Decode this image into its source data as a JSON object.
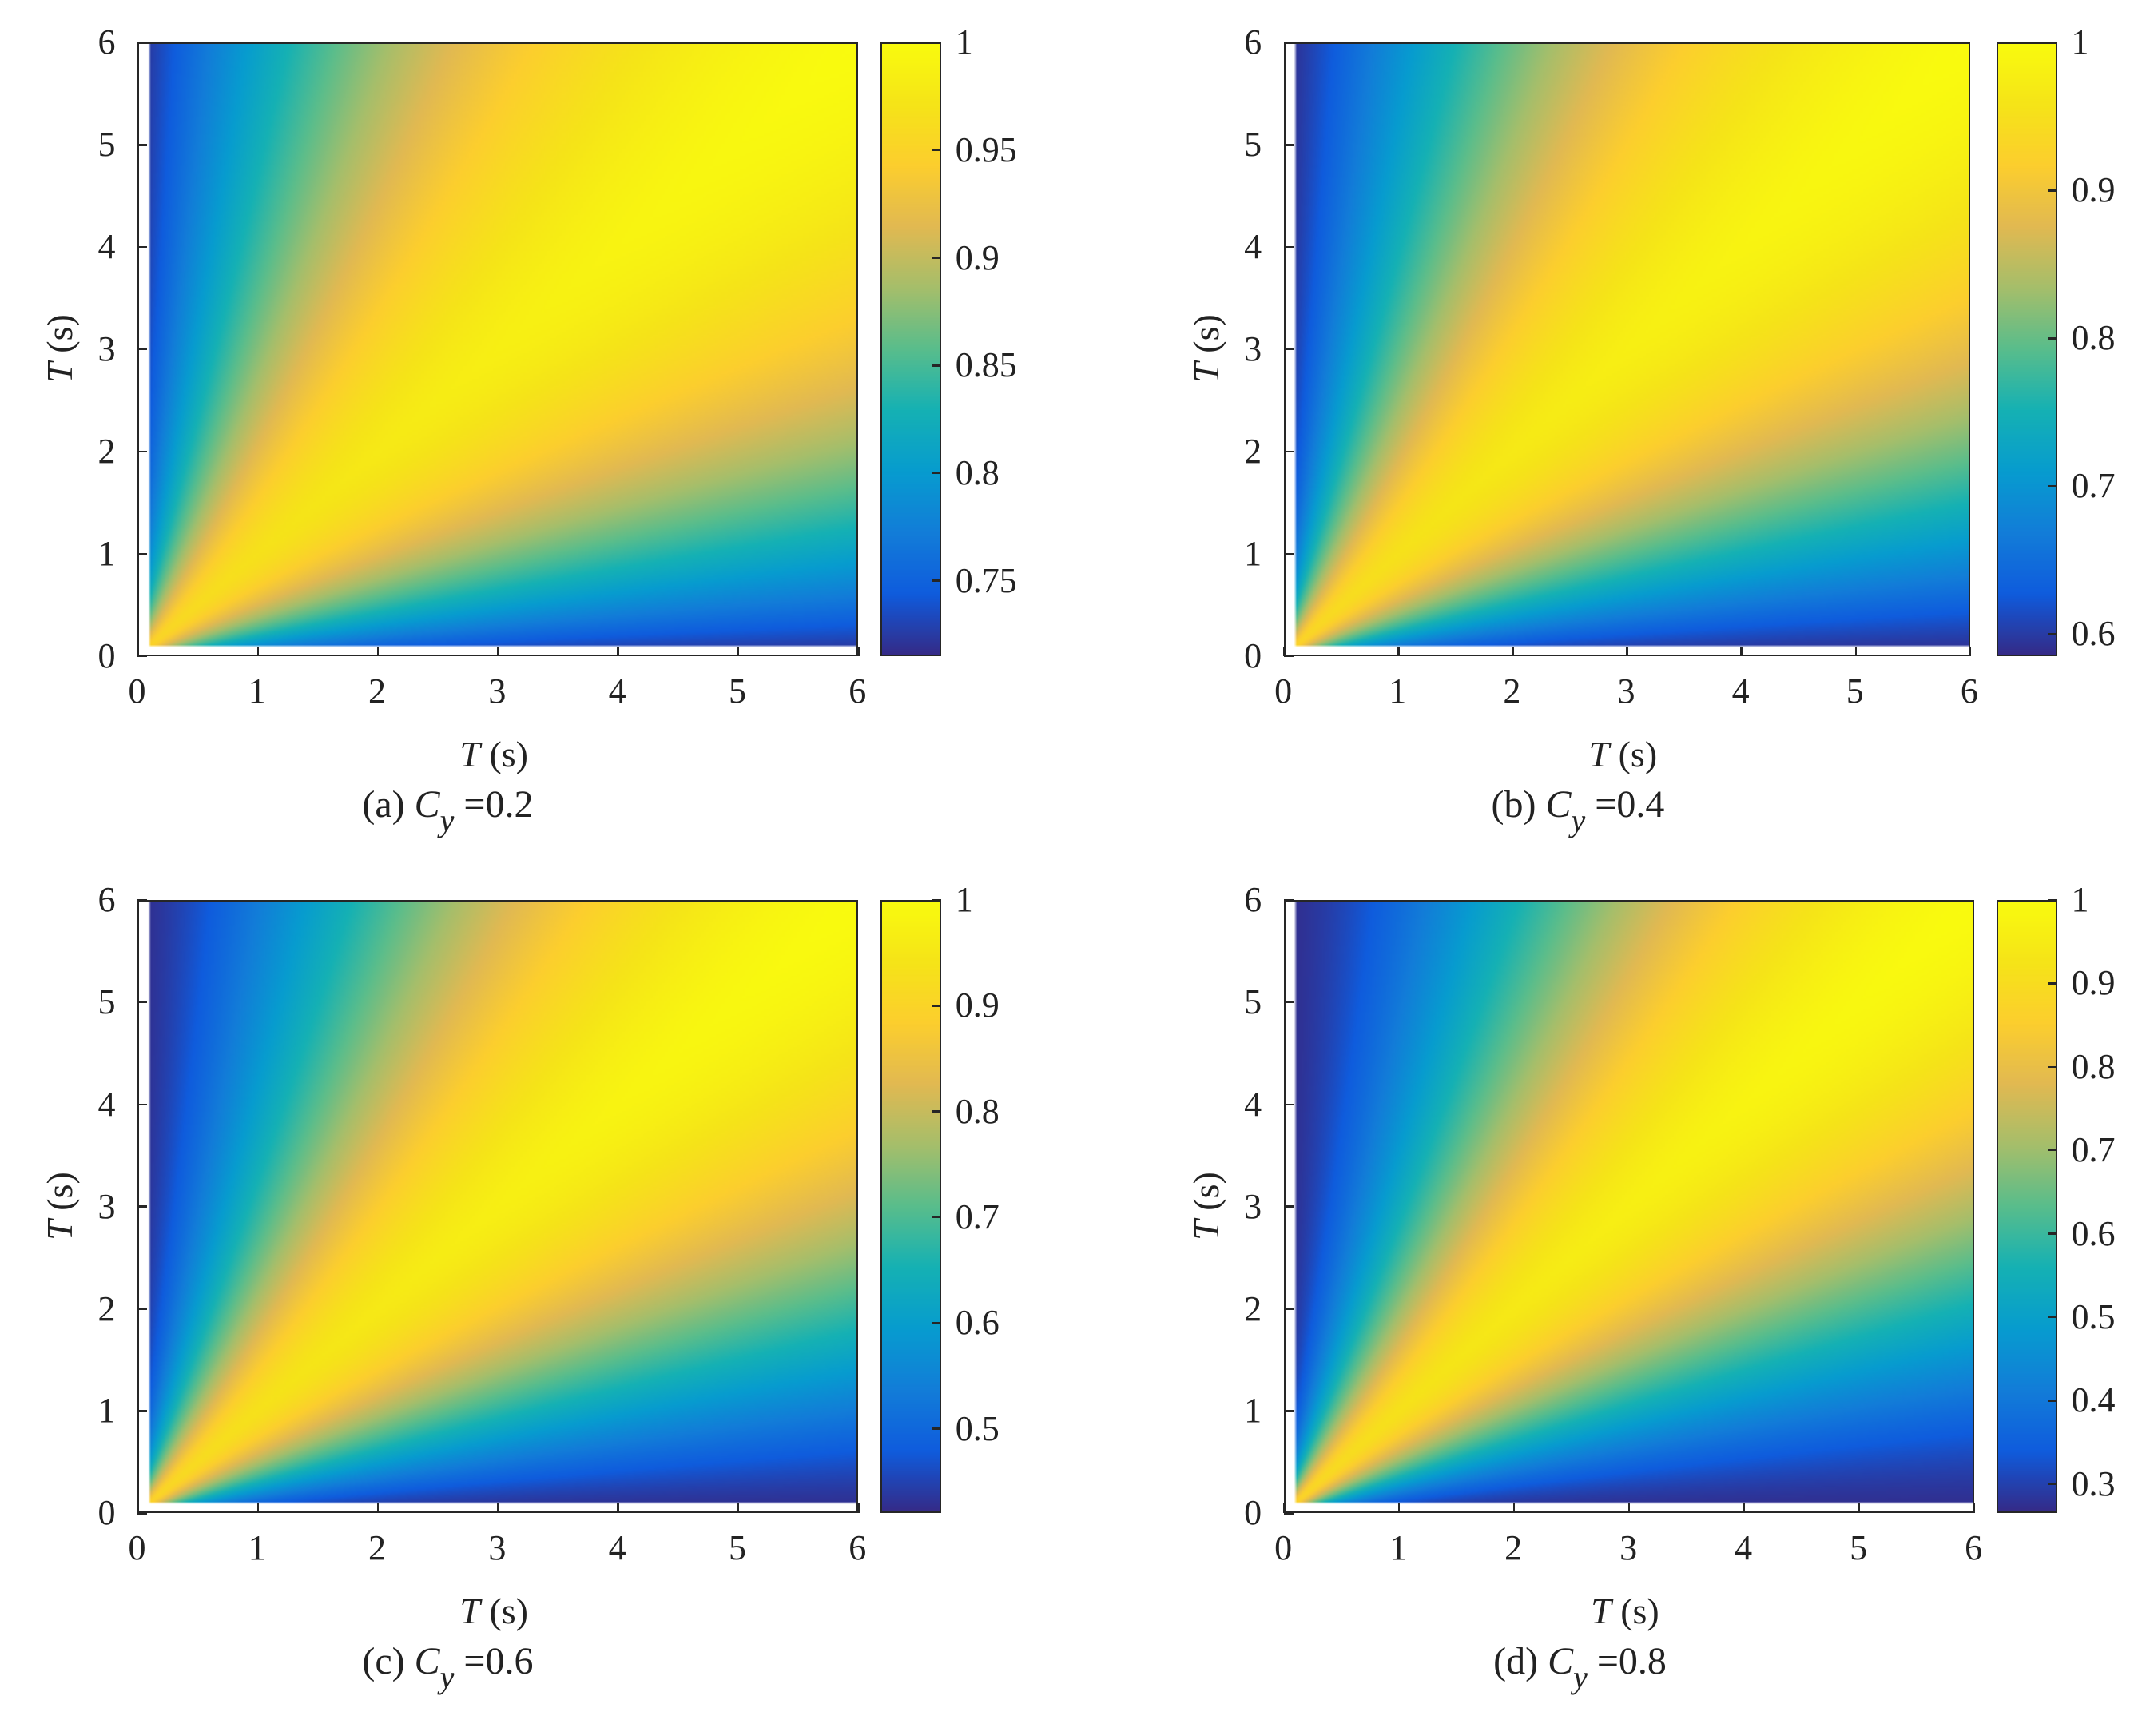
{
  "axis_label_var": "T",
  "axis_label_unit": " (s)",
  "caption_var": "C",
  "caption_sub": "y",
  "chart_data": [
    {
      "type": "heatmap",
      "caption_prefix": "(a) ",
      "caption_value": " =0.2",
      "xlabel": "T (s)",
      "ylabel": "T (s)",
      "xlim": [
        0,
        6
      ],
      "ylim": [
        0,
        6
      ],
      "xticks": [
        "0",
        "1",
        "2",
        "3",
        "4",
        "5",
        "6"
      ],
      "yticks": [
        "0",
        "1",
        "2",
        "3",
        "4",
        "5",
        "6"
      ],
      "colormap": "parula",
      "clim": [
        0.715,
        1.0
      ],
      "colorbar_ticks": [
        "0.75",
        "0.8",
        "0.85",
        "0.9",
        "0.95",
        "1"
      ],
      "colorbar_tick_values": [
        0.75,
        0.8,
        0.85,
        0.9,
        0.95,
        1.0
      ],
      "description_values": {
        "diagonal": 1.0,
        "upper_left_min": 0.72,
        "lower_right_min": 0.72
      }
    },
    {
      "type": "heatmap",
      "caption_prefix": "(b) ",
      "caption_value": " =0.4",
      "xlabel": "T (s)",
      "ylabel": "T (s)",
      "xlim": [
        0,
        6
      ],
      "ylim": [
        0,
        6
      ],
      "xticks": [
        "0",
        "1",
        "2",
        "3",
        "4",
        "5",
        "6"
      ],
      "yticks": [
        "0",
        "1",
        "2",
        "3",
        "4",
        "5",
        "6"
      ],
      "colormap": "parula",
      "clim": [
        0.585,
        1.0
      ],
      "colorbar_ticks": [
        "0.6",
        "0.7",
        "0.8",
        "0.9",
        "1"
      ],
      "colorbar_tick_values": [
        0.6,
        0.7,
        0.8,
        0.9,
        1.0
      ],
      "description_values": {
        "diagonal": 1.0,
        "upper_left_min": 0.6,
        "lower_right_min": 0.6
      }
    },
    {
      "type": "heatmap",
      "caption_prefix": "(c) ",
      "caption_value": " =0.6",
      "xlabel": "T (s)",
      "ylabel": "T (s)",
      "xlim": [
        0,
        6
      ],
      "ylim": [
        0,
        6
      ],
      "xticks": [
        "0",
        "1",
        "2",
        "3",
        "4",
        "5",
        "6"
      ],
      "yticks": [
        "0",
        "1",
        "2",
        "3",
        "4",
        "5",
        "6"
      ],
      "colormap": "parula",
      "clim": [
        0.42,
        1.0
      ],
      "colorbar_ticks": [
        "0.5",
        "0.6",
        "0.7",
        "0.8",
        "0.9",
        "1"
      ],
      "colorbar_tick_values": [
        0.5,
        0.6,
        0.7,
        0.8,
        0.9,
        1.0
      ],
      "description_values": {
        "diagonal": 1.0,
        "upper_left_min": 0.44,
        "lower_right_min": 0.44
      }
    },
    {
      "type": "heatmap",
      "caption_prefix": "(d) ",
      "caption_value": " =0.8",
      "xlabel": "T (s)",
      "ylabel": "T (s)",
      "xlim": [
        0,
        6
      ],
      "ylim": [
        0,
        6
      ],
      "xticks": [
        "0",
        "1",
        "2",
        "3",
        "4",
        "5",
        "6"
      ],
      "yticks": [
        "0",
        "1",
        "2",
        "3",
        "4",
        "5",
        "6"
      ],
      "colormap": "parula",
      "clim": [
        0.265,
        1.0
      ],
      "colorbar_ticks": [
        "0.3",
        "0.4",
        "0.5",
        "0.6",
        "0.7",
        "0.8",
        "0.9",
        "1"
      ],
      "colorbar_tick_values": [
        0.3,
        0.4,
        0.5,
        0.6,
        0.7,
        0.8,
        0.9,
        1.0
      ],
      "description_values": {
        "diagonal": 1.0,
        "upper_left_min": 0.28,
        "lower_right_min": 0.28
      }
    }
  ]
}
